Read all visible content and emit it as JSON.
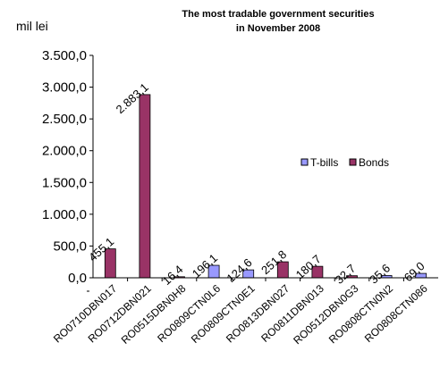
{
  "chart_data": {
    "type": "bar",
    "title": "The most tradable government securities",
    "subtitle": "in November 2008",
    "ylabel": "mil lei",
    "xlabel": "",
    "ylim": [
      0,
      3500
    ],
    "yticks": [
      "0,0",
      "500,0",
      "1.000,0",
      "1.500,0",
      "2.000,0",
      "2.500,0",
      "3.000,0",
      "3.500,0"
    ],
    "grid": false,
    "legend_position": "right",
    "categories": [
      "RO0710DBN017",
      "RO0712DBN021",
      "RO0515DBN0H8",
      "RO0809CTN0L6",
      "RO0809CTN0E1",
      "RO0813DBN027",
      "RO0811DBN013",
      "RO0512DBN0G3",
      "RO0808CTN0N2",
      "RO0808CTN086"
    ],
    "values": [
      455.1,
      2883.1,
      16.4,
      196.1,
      124.6,
      251.8,
      180.7,
      32.7,
      35.6,
      69.0
    ],
    "value_labels": [
      "455,1",
      "2.883,1",
      "16,4",
      "196,1",
      "124,6",
      "251,8",
      "180,7",
      "32,7",
      "35,6",
      "69,0"
    ],
    "bar_series": [
      "Bonds",
      "Bonds",
      "Bonds",
      "T-bills",
      "T-bills",
      "Bonds",
      "Bonds",
      "Bonds",
      "T-bills",
      "T-bills"
    ],
    "series": [
      {
        "name": "T-bills",
        "color": "#9999FF"
      },
      {
        "name": "Bonds",
        "color": "#993366"
      }
    ]
  }
}
